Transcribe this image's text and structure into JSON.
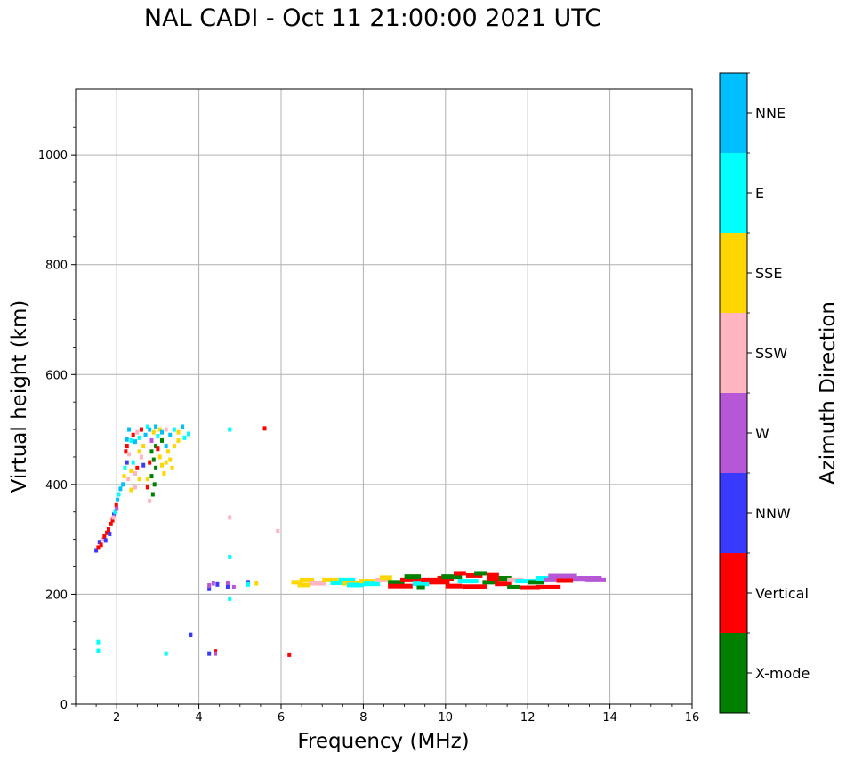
{
  "chart_data": {
    "type": "scatter",
    "title": "NAL CADI - Oct 11 21:00:00 2021 UTC",
    "xlabel": "Frequency (MHz)",
    "ylabel": "Virtual height (km)",
    "xlim": [
      1,
      16
    ],
    "ylim": [
      0,
      1120
    ],
    "xticks": [
      2,
      4,
      6,
      8,
      10,
      12,
      14,
      16
    ],
    "yticks": [
      0,
      200,
      400,
      600,
      800,
      1000
    ],
    "grid": true,
    "colorbar": {
      "label": "Azimuth Direction",
      "categories": [
        {
          "name": "NNE",
          "color": "#00bfff"
        },
        {
          "name": "E",
          "color": "#00ffff"
        },
        {
          "name": "SSE",
          "color": "#ffd700"
        },
        {
          "name": "SSW",
          "color": "#ffb6c1"
        },
        {
          "name": "W",
          "color": "#b657d6"
        },
        {
          "name": "NNW",
          "color": "#3a3aff"
        },
        {
          "name": "Vertical",
          "color": "#ff0000"
        },
        {
          "name": "X-mode",
          "color": "#008000"
        }
      ]
    },
    "points": [
      {
        "x": 1.5,
        "y": 280,
        "d": "NNW"
      },
      {
        "x": 1.55,
        "y": 285,
        "d": "Vertical"
      },
      {
        "x": 1.58,
        "y": 295,
        "d": "NNW"
      },
      {
        "x": 1.62,
        "y": 290,
        "d": "Vertical"
      },
      {
        "x": 1.65,
        "y": 300,
        "d": "SSW"
      },
      {
        "x": 1.7,
        "y": 305,
        "d": "Vertical"
      },
      {
        "x": 1.73,
        "y": 298,
        "d": "NNW"
      },
      {
        "x": 1.76,
        "y": 312,
        "d": "Vertical"
      },
      {
        "x": 1.8,
        "y": 318,
        "d": "Vertical"
      },
      {
        "x": 1.83,
        "y": 310,
        "d": "NNW"
      },
      {
        "x": 1.86,
        "y": 328,
        "d": "Vertical"
      },
      {
        "x": 1.9,
        "y": 335,
        "d": "Vertical"
      },
      {
        "x": 1.93,
        "y": 345,
        "d": "NNW"
      },
      {
        "x": 1.96,
        "y": 350,
        "d": "E"
      },
      {
        "x": 1.99,
        "y": 362,
        "d": "Vertical"
      },
      {
        "x": 2.02,
        "y": 372,
        "d": "NNE"
      },
      {
        "x": 2.05,
        "y": 382,
        "d": "E"
      },
      {
        "x": 2.09,
        "y": 392,
        "d": "NNE"
      },
      {
        "x": 1.92,
        "y": 340,
        "d": "SSW"
      },
      {
        "x": 2.0,
        "y": 356,
        "d": "W"
      },
      {
        "x": 2.15,
        "y": 400,
        "d": "NNE"
      },
      {
        "x": 2.18,
        "y": 415,
        "d": "SSE"
      },
      {
        "x": 2.25,
        "y": 440,
        "d": "NNW"
      },
      {
        "x": 2.22,
        "y": 460,
        "d": "Vertical"
      },
      {
        "x": 2.25,
        "y": 470,
        "d": "Vertical"
      },
      {
        "x": 2.25,
        "y": 482,
        "d": "NNE"
      },
      {
        "x": 2.3,
        "y": 500,
        "d": "NNE"
      },
      {
        "x": 2.35,
        "y": 480,
        "d": "E"
      },
      {
        "x": 2.4,
        "y": 490,
        "d": "Vertical"
      },
      {
        "x": 2.45,
        "y": 478,
        "d": "NNE"
      },
      {
        "x": 2.5,
        "y": 495,
        "d": "SSW"
      },
      {
        "x": 2.55,
        "y": 485,
        "d": "E"
      },
      {
        "x": 2.6,
        "y": 500,
        "d": "Vertical"
      },
      {
        "x": 2.65,
        "y": 470,
        "d": "SSE"
      },
      {
        "x": 2.7,
        "y": 490,
        "d": "NNE"
      },
      {
        "x": 2.75,
        "y": 505,
        "d": "E"
      },
      {
        "x": 2.8,
        "y": 500,
        "d": "NNE"
      },
      {
        "x": 2.85,
        "y": 480,
        "d": "W"
      },
      {
        "x": 2.9,
        "y": 495,
        "d": "SSE"
      },
      {
        "x": 2.95,
        "y": 505,
        "d": "NNE"
      },
      {
        "x": 3.0,
        "y": 488,
        "d": "E"
      },
      {
        "x": 3.05,
        "y": 500,
        "d": "SSE"
      },
      {
        "x": 3.1,
        "y": 495,
        "d": "NNE"
      },
      {
        "x": 3.2,
        "y": 500,
        "d": "SSW"
      },
      {
        "x": 3.3,
        "y": 490,
        "d": "NNE"
      },
      {
        "x": 3.4,
        "y": 500,
        "d": "E"
      },
      {
        "x": 3.5,
        "y": 495,
        "d": "SSE"
      },
      {
        "x": 3.6,
        "y": 505,
        "d": "NNE"
      },
      {
        "x": 3.65,
        "y": 485,
        "d": "E"
      },
      {
        "x": 3.75,
        "y": 492,
        "d": "E"
      },
      {
        "x": 2.4,
        "y": 440,
        "d": "E"
      },
      {
        "x": 2.45,
        "y": 420,
        "d": "SSW"
      },
      {
        "x": 2.5,
        "y": 430,
        "d": "Vertical"
      },
      {
        "x": 2.55,
        "y": 410,
        "d": "SSE"
      },
      {
        "x": 2.6,
        "y": 450,
        "d": "SSW"
      },
      {
        "x": 2.65,
        "y": 435,
        "d": "NNW"
      },
      {
        "x": 2.35,
        "y": 425,
        "d": "SSE"
      },
      {
        "x": 2.45,
        "y": 395,
        "d": "SSW"
      },
      {
        "x": 2.3,
        "y": 455,
        "d": "SSW"
      },
      {
        "x": 2.2,
        "y": 430,
        "d": "E"
      },
      {
        "x": 2.28,
        "y": 410,
        "d": "SSW"
      },
      {
        "x": 2.85,
        "y": 460,
        "d": "X-mode"
      },
      {
        "x": 2.9,
        "y": 445,
        "d": "X-mode"
      },
      {
        "x": 2.95,
        "y": 430,
        "d": "X-mode"
      },
      {
        "x": 2.85,
        "y": 415,
        "d": "X-mode"
      },
      {
        "x": 2.92,
        "y": 400,
        "d": "X-mode"
      },
      {
        "x": 2.88,
        "y": 382,
        "d": "X-mode"
      },
      {
        "x": 2.95,
        "y": 470,
        "d": "X-mode"
      },
      {
        "x": 2.8,
        "y": 440,
        "d": "Vertical"
      },
      {
        "x": 3.05,
        "y": 450,
        "d": "SSE"
      },
      {
        "x": 3.1,
        "y": 435,
        "d": "SSE"
      },
      {
        "x": 3.15,
        "y": 420,
        "d": "SSE"
      },
      {
        "x": 3.2,
        "y": 440,
        "d": "SSE"
      },
      {
        "x": 3.25,
        "y": 460,
        "d": "SSE"
      },
      {
        "x": 3.3,
        "y": 445,
        "d": "SSE"
      },
      {
        "x": 3.4,
        "y": 470,
        "d": "SSE"
      },
      {
        "x": 3.5,
        "y": 480,
        "d": "SSE"
      },
      {
        "x": 3.35,
        "y": 430,
        "d": "SSE"
      },
      {
        "x": 3.0,
        "y": 465,
        "d": "Vertical"
      },
      {
        "x": 3.1,
        "y": 480,
        "d": "X-mode"
      },
      {
        "x": 3.2,
        "y": 470,
        "d": "NNE"
      },
      {
        "x": 2.75,
        "y": 410,
        "d": "SSE"
      },
      {
        "x": 2.75,
        "y": 395,
        "d": "Vertical"
      },
      {
        "x": 2.8,
        "y": 370,
        "d": "SSW"
      },
      {
        "x": 2.55,
        "y": 460,
        "d": "SSE"
      },
      {
        "x": 2.35,
        "y": 390,
        "d": "SSE"
      },
      {
        "x": 4.75,
        "y": 500,
        "d": "E"
      },
      {
        "x": 5.6,
        "y": 502,
        "d": "Vertical"
      },
      {
        "x": 4.75,
        "y": 340,
        "d": "SSW"
      },
      {
        "x": 5.92,
        "y": 315,
        "d": "SSW"
      },
      {
        "x": 4.75,
        "y": 268,
        "d": "E"
      },
      {
        "x": 4.75,
        "y": 192,
        "d": "E"
      },
      {
        "x": 4.25,
        "y": 210,
        "d": "NNW"
      },
      {
        "x": 4.25,
        "y": 216,
        "d": "W"
      },
      {
        "x": 4.35,
        "y": 220,
        "d": "W"
      },
      {
        "x": 4.45,
        "y": 218,
        "d": "NNW"
      },
      {
        "x": 4.7,
        "y": 220,
        "d": "W"
      },
      {
        "x": 4.7,
        "y": 213,
        "d": "NNW"
      },
      {
        "x": 4.85,
        "y": 213,
        "d": "W"
      },
      {
        "x": 5.2,
        "y": 222,
        "d": "NNW"
      },
      {
        "x": 5.2,
        "y": 218,
        "d": "E"
      },
      {
        "x": 5.4,
        "y": 220,
        "d": "SSE"
      },
      {
        "x": 1.55,
        "y": 113,
        "d": "E"
      },
      {
        "x": 1.55,
        "y": 97,
        "d": "E"
      },
      {
        "x": 3.2,
        "y": 92,
        "d": "E"
      },
      {
        "x": 3.8,
        "y": 126,
        "d": "NNW"
      },
      {
        "x": 4.25,
        "y": 92,
        "d": "NNW"
      },
      {
        "x": 4.4,
        "y": 96,
        "d": "Vertical"
      },
      {
        "x": 4.4,
        "y": 92,
        "d": "W"
      },
      {
        "x": 6.2,
        "y": 90,
        "d": "Vertical"
      }
    ],
    "segments": [
      {
        "x0": 6.25,
        "x1": 6.5,
        "y": 222,
        "d": "SSE"
      },
      {
        "x0": 6.45,
        "x1": 6.8,
        "y": 226,
        "d": "SSE"
      },
      {
        "x0": 6.4,
        "x1": 6.7,
        "y": 217,
        "d": "SSE"
      },
      {
        "x0": 6.7,
        "x1": 7.1,
        "y": 220,
        "d": "SSW"
      },
      {
        "x0": 7.0,
        "x1": 7.4,
        "y": 226,
        "d": "SSE"
      },
      {
        "x0": 7.2,
        "x1": 7.6,
        "y": 221,
        "d": "E"
      },
      {
        "x0": 7.4,
        "x1": 7.8,
        "y": 226,
        "d": "E"
      },
      {
        "x0": 7.5,
        "x1": 7.9,
        "y": 220,
        "d": "SSE"
      },
      {
        "x0": 7.6,
        "x1": 8.0,
        "y": 217,
        "d": "E"
      },
      {
        "x0": 7.9,
        "x1": 8.3,
        "y": 224,
        "d": "SSE"
      },
      {
        "x0": 8.0,
        "x1": 8.4,
        "y": 219,
        "d": "E"
      },
      {
        "x0": 8.3,
        "x1": 8.6,
        "y": 226,
        "d": "SSW"
      },
      {
        "x0": 8.4,
        "x1": 8.7,
        "y": 230,
        "d": "SSE"
      },
      {
        "x0": 8.6,
        "x1": 9.0,
        "y": 222,
        "d": "X-mode"
      },
      {
        "x0": 8.6,
        "x1": 9.2,
        "y": 215,
        "d": "Vertical"
      },
      {
        "x0": 8.9,
        "x1": 9.4,
        "y": 226,
        "d": "Vertical"
      },
      {
        "x0": 9.0,
        "x1": 9.4,
        "y": 232,
        "d": "X-mode"
      },
      {
        "x0": 9.2,
        "x1": 9.6,
        "y": 219,
        "d": "E"
      },
      {
        "x0": 9.3,
        "x1": 9.5,
        "y": 212,
        "d": "X-mode"
      },
      {
        "x0": 9.4,
        "x1": 9.8,
        "y": 226,
        "d": "Vertical"
      },
      {
        "x0": 9.6,
        "x1": 10.1,
        "y": 222,
        "d": "Vertical"
      },
      {
        "x0": 9.8,
        "x1": 10.2,
        "y": 229,
        "d": "Vertical"
      },
      {
        "x0": 9.9,
        "x1": 10.4,
        "y": 232,
        "d": "X-mode"
      },
      {
        "x0": 10.0,
        "x1": 10.4,
        "y": 215,
        "d": "Vertical"
      },
      {
        "x0": 10.2,
        "x1": 10.5,
        "y": 238,
        "d": "Vertical"
      },
      {
        "x0": 10.3,
        "x1": 10.8,
        "y": 224,
        "d": "E"
      },
      {
        "x0": 10.4,
        "x1": 11.0,
        "y": 214,
        "d": "Vertical"
      },
      {
        "x0": 10.5,
        "x1": 10.9,
        "y": 234,
        "d": "Vertical"
      },
      {
        "x0": 10.7,
        "x1": 11.0,
        "y": 238,
        "d": "X-mode"
      },
      {
        "x0": 10.9,
        "x1": 11.3,
        "y": 222,
        "d": "X-mode"
      },
      {
        "x0": 11.0,
        "x1": 11.4,
        "y": 229,
        "d": "Vertical"
      },
      {
        "x0": 11.0,
        "x1": 11.3,
        "y": 236,
        "d": "Vertical"
      },
      {
        "x0": 11.2,
        "x1": 11.6,
        "y": 219,
        "d": "Vertical"
      },
      {
        "x0": 11.3,
        "x1": 11.6,
        "y": 229,
        "d": "X-mode"
      },
      {
        "x0": 11.5,
        "x1": 11.9,
        "y": 226,
        "d": "SSW"
      },
      {
        "x0": 11.5,
        "x1": 11.8,
        "y": 213,
        "d": "X-mode"
      },
      {
        "x0": 11.7,
        "x1": 12.2,
        "y": 224,
        "d": "E"
      },
      {
        "x0": 11.8,
        "x1": 12.3,
        "y": 212,
        "d": "Vertical"
      },
      {
        "x0": 12.0,
        "x1": 12.4,
        "y": 222,
        "d": "X-mode"
      },
      {
        "x0": 12.2,
        "x1": 12.6,
        "y": 229,
        "d": "E"
      },
      {
        "x0": 12.2,
        "x1": 12.8,
        "y": 213,
        "d": "Vertical"
      },
      {
        "x0": 12.4,
        "x1": 12.9,
        "y": 226,
        "d": "W"
      },
      {
        "x0": 12.5,
        "x1": 13.2,
        "y": 233,
        "d": "W"
      },
      {
        "x0": 12.8,
        "x1": 13.4,
        "y": 227,
        "d": "W"
      },
      {
        "x0": 13.2,
        "x1": 13.8,
        "y": 229,
        "d": "W"
      },
      {
        "x0": 13.4,
        "x1": 13.9,
        "y": 226,
        "d": "W"
      },
      {
        "x0": 12.7,
        "x1": 13.1,
        "y": 225,
        "d": "Vertical"
      }
    ]
  }
}
